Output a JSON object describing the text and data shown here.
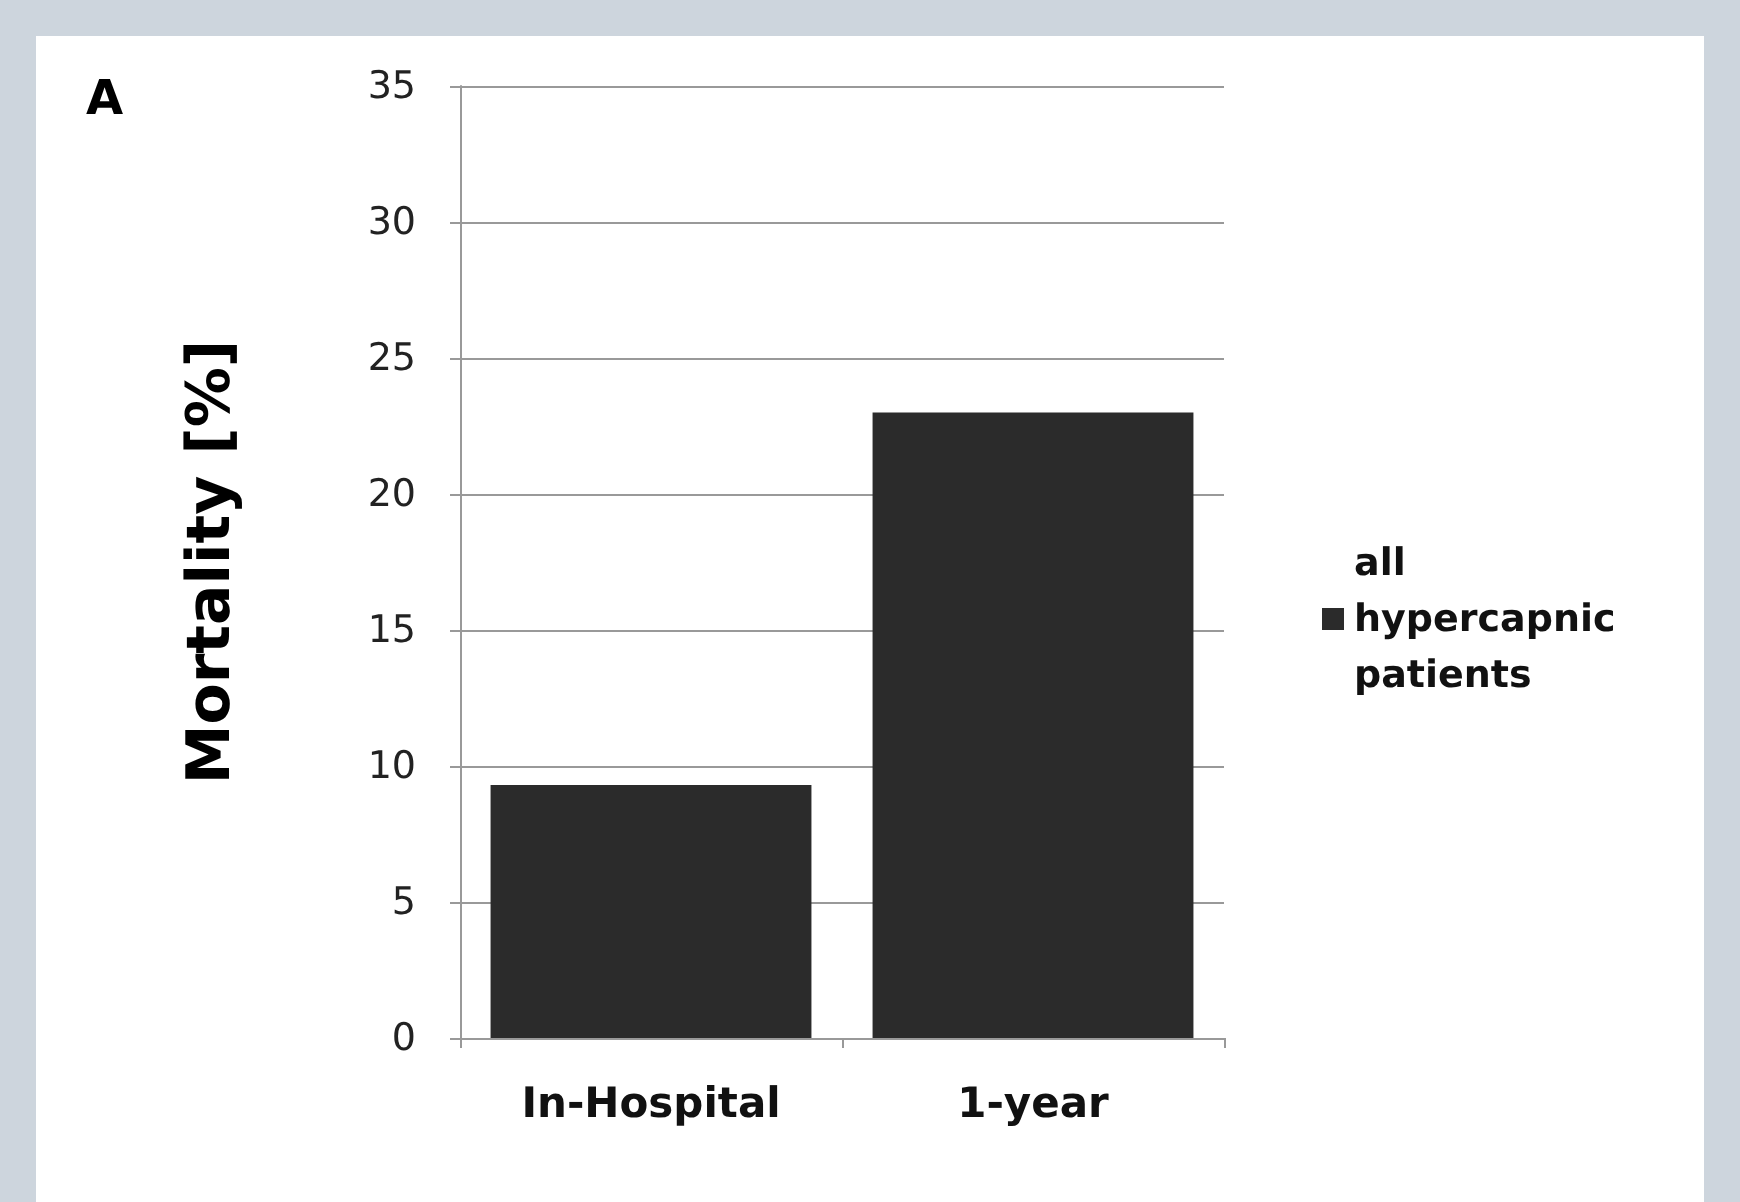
{
  "chart_data": {
    "type": "bar",
    "title": "A",
    "ylabel": "Mortality [%]",
    "categories": [
      "In-Hospital",
      "1-year"
    ],
    "series": [
      {
        "name": "all hypercapnic patients",
        "color": "#2b2b2b",
        "values": [
          9.3,
          23.0
        ]
      }
    ],
    "ylim": [
      0,
      35
    ],
    "yticks": [
      0,
      5,
      10,
      15,
      20,
      25,
      30,
      35
    ],
    "grid": "y",
    "legend": "right"
  }
}
